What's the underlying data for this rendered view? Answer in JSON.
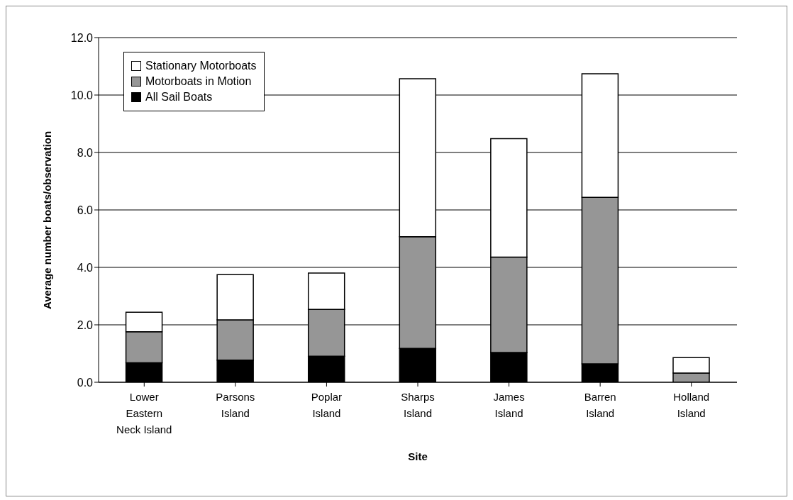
{
  "chart_data": {
    "type": "bar",
    "stacked": true,
    "xlabel": "Site",
    "ylabel": "Average number boats/observation",
    "categories": [
      "Lower Eastern Neck Island",
      "Parsons Island",
      "Poplar Island",
      "Sharps Island",
      "James Island",
      "Barren Island",
      "Holland Island"
    ],
    "series": [
      {
        "name": "All Sail Boats",
        "color": "#000000",
        "values": [
          0.68,
          0.77,
          0.91,
          1.18,
          1.04,
          0.64,
          0
        ]
      },
      {
        "name": "Motorboats in Motion",
        "color": "#969696",
        "values": [
          1.08,
          1.4,
          1.63,
          3.89,
          3.32,
          5.8,
          0.32
        ]
      },
      {
        "name": "Stationary Motorboats",
        "color": "#ffffff",
        "values": [
          0.68,
          1.58,
          1.26,
          5.5,
          4.12,
          4.3,
          0.54
        ]
      }
    ],
    "ylim": [
      0,
      12
    ],
    "yticks": [
      {
        "value": 0,
        "label": "0.0"
      },
      {
        "value": 2,
        "label": "2.0"
      },
      {
        "value": 4,
        "label": "4.0"
      },
      {
        "value": 6,
        "label": "6.0"
      },
      {
        "value": 8,
        "label": "8.0"
      },
      {
        "value": 10,
        "label": "10.0"
      },
      {
        "value": 12,
        "label": "12.0"
      }
    ],
    "grid": "y",
    "legend": "top left"
  }
}
